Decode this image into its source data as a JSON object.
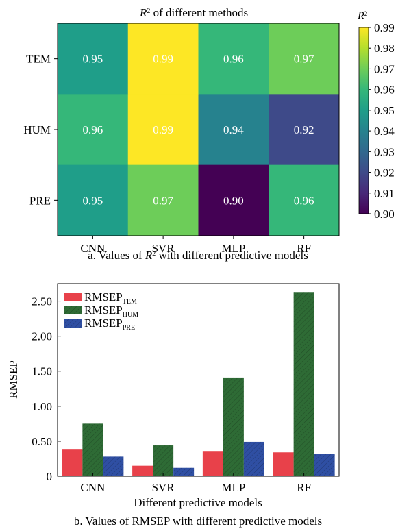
{
  "chart_data": [
    {
      "type": "heatmap",
      "title": "R² of different methods",
      "caption": "a. Values of R² with different predictive models",
      "x_categories": [
        "CNN",
        "SVR",
        "MLP",
        "RF"
      ],
      "y_categories": [
        "TEM",
        "HUM",
        "PRE"
      ],
      "values": [
        [
          0.95,
          0.99,
          0.96,
          0.97
        ],
        [
          0.96,
          0.99,
          0.94,
          0.92
        ],
        [
          0.95,
          0.97,
          0.9,
          0.96
        ]
      ],
      "colorbar": {
        "label": "R²",
        "min": 0.9,
        "max": 0.99,
        "ticks": [
          "0.90",
          "0.91",
          "0.92",
          "0.93",
          "0.94",
          "0.95",
          "0.96",
          "0.97",
          "0.98",
          "0.99"
        ],
        "colormap": "viridis"
      }
    },
    {
      "type": "bar",
      "categories": [
        "CNN",
        "SVR",
        "MLP",
        "RF"
      ],
      "series": [
        {
          "name": "RMSEP",
          "subscript": "TEM",
          "color": "#e8414a",
          "values": [
            0.38,
            0.15,
            0.36,
            0.34
          ]
        },
        {
          "name": "RMSEP",
          "subscript": "HUM",
          "color": "#2e6b35",
          "values": [
            0.75,
            0.44,
            1.41,
            2.63
          ]
        },
        {
          "name": "RMSEP",
          "subscript": "PRE",
          "color": "#2f4fa3",
          "values": [
            0.28,
            0.12,
            0.49,
            0.32
          ]
        }
      ],
      "xlabel": "Different predictive models",
      "ylabel": "RMSEP",
      "ylim": [
        0,
        2.75
      ],
      "yticks": [
        "0",
        "0.50",
        "1.00",
        "1.50",
        "2.00",
        "2.50"
      ],
      "legend_position": "top-left",
      "caption": "b. Values of RMSEP with different predictive models"
    }
  ]
}
